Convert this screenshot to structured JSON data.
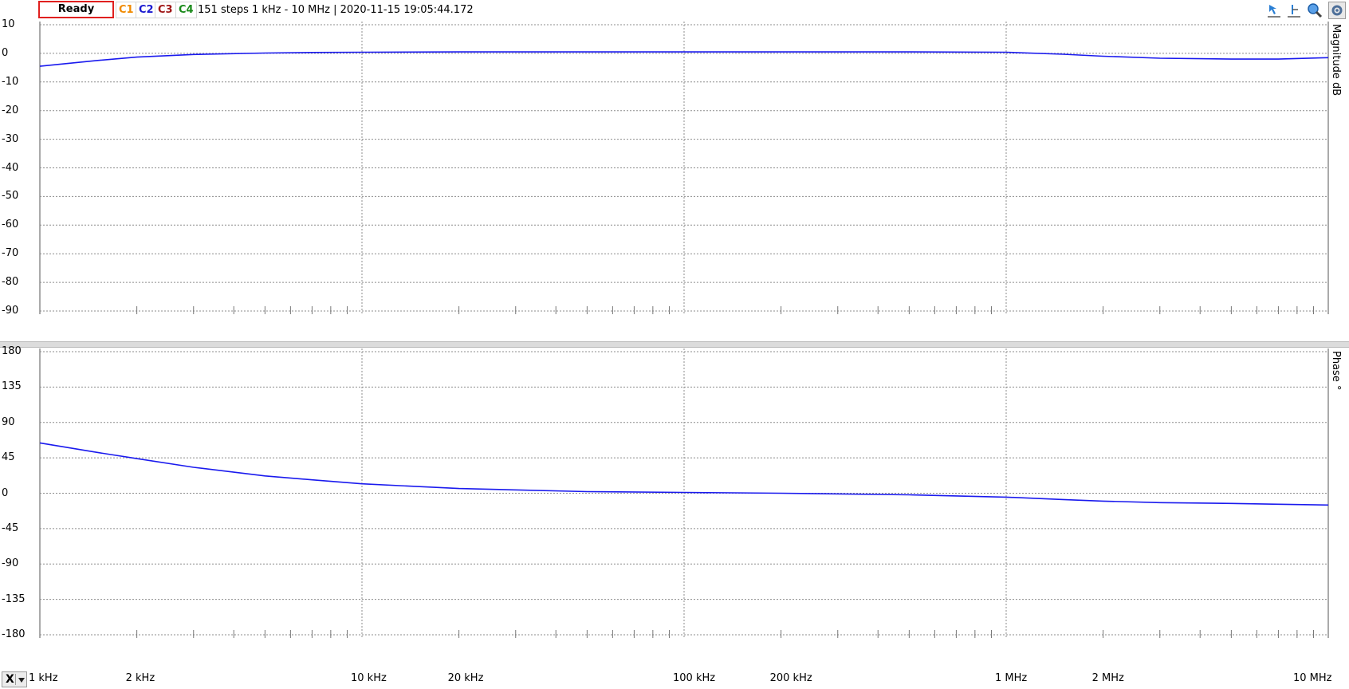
{
  "toolbar": {
    "status": "Ready",
    "channels": [
      {
        "label": "C1",
        "color": "#f08a00"
      },
      {
        "label": "C2",
        "color": "#1a1ad0"
      },
      {
        "label": "C3",
        "color": "#a01818"
      },
      {
        "label": "C4",
        "color": "#1a8a1a"
      }
    ],
    "info": "151 steps  1 kHz - 10 MHz | 2020-11-15 19:05:44.172",
    "tools": [
      "cursor-arrow-icon",
      "cursor-horizontal-icon",
      "zoom-icon",
      "settings-icon"
    ]
  },
  "x_axis": {
    "button_label": "X",
    "tick_labels": [
      "1 kHz",
      "2 kHz",
      "10 kHz",
      "20 kHz",
      "100 kHz",
      "200 kHz",
      "1 MHz",
      "2 MHz",
      "10 MHz"
    ]
  },
  "colors": {
    "trace": "#1a1aee",
    "grid": "#8c8c8c"
  },
  "chart_data": [
    {
      "type": "line",
      "ylabel": "Magnitude  dB",
      "xscale": "log",
      "xlim": [
        1000,
        10000000
      ],
      "ylim": [
        -90,
        10
      ],
      "yticks": [
        10,
        0,
        -10,
        -20,
        -30,
        -40,
        -50,
        -60,
        -70,
        -80,
        -90
      ],
      "grid": true,
      "series": [
        {
          "x": [
            1000,
            1500,
            2000,
            3000,
            5000,
            7000,
            10000,
            20000,
            50000,
            100000,
            200000,
            500000,
            1000000,
            1500000,
            2000000,
            3000000,
            5000000,
            7000000,
            10000000
          ],
          "y": [
            -4.5,
            -2.5,
            -1.3,
            -0.4,
            0.1,
            0.3,
            0.4,
            0.5,
            0.5,
            0.5,
            0.5,
            0.5,
            0.4,
            -0.3,
            -1.0,
            -1.7,
            -2.0,
            -2.0,
            -1.5
          ]
        }
      ]
    },
    {
      "type": "line",
      "ylabel": "Phase  °",
      "xscale": "log",
      "xlim": [
        1000,
        10000000
      ],
      "ylim": [
        -180,
        180
      ],
      "yticks": [
        180,
        135,
        90,
        45,
        0,
        -45,
        -90,
        -135,
        -180
      ],
      "grid": true,
      "series": [
        {
          "x": [
            1000,
            1500,
            2000,
            3000,
            5000,
            7000,
            10000,
            20000,
            50000,
            100000,
            200000,
            500000,
            1000000,
            1500000,
            2000000,
            3000000,
            5000000,
            7000000,
            10000000
          ],
          "y": [
            64,
            52,
            44,
            33,
            22,
            17,
            12,
            6,
            2,
            1,
            0,
            -2,
            -5,
            -8,
            -10,
            -12,
            -13,
            -14,
            -15
          ]
        }
      ]
    }
  ]
}
